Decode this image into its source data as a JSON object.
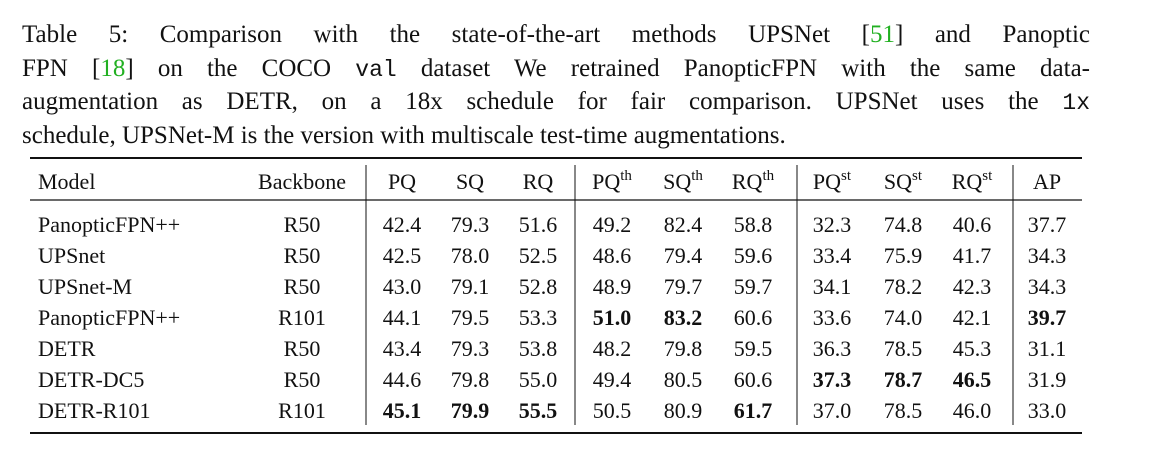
{
  "caption": {
    "lines": [
      [
        {
          "text": "Table 5: Comparison with the state-of-the-art methods UPSNet ["
        },
        {
          "text": "51",
          "style": "cite"
        },
        {
          "text": "] and Panoptic"
        }
      ],
      [
        {
          "text": "FPN ["
        },
        {
          "text": "18",
          "style": "cite"
        },
        {
          "text": "] on the COCO "
        },
        {
          "text": "val",
          "style": "code"
        },
        {
          "text": " dataset We retrained PanopticFPN with the same data-"
        }
      ],
      [
        {
          "text": "augmentation as DETR, on a 18x schedule for fair comparison. UPSNet uses the "
        },
        {
          "text": "1x",
          "style": "code"
        }
      ],
      [
        {
          "text": "schedule, UPSNet-M is the version with multiscale test-time augmentations."
        }
      ]
    ]
  },
  "table": {
    "header": [
      {
        "text": "Model"
      },
      {
        "text": "Backbone"
      },
      {
        "text": "PQ"
      },
      {
        "text": "SQ"
      },
      {
        "text": "RQ"
      },
      {
        "text": "PQ",
        "sup": "th"
      },
      {
        "text": "SQ",
        "sup": "th"
      },
      {
        "text": "RQ",
        "sup": "th"
      },
      {
        "text": "PQ",
        "sup": "st"
      },
      {
        "text": "SQ",
        "sup": "st"
      },
      {
        "text": "RQ",
        "sup": "st"
      },
      {
        "text": "AP"
      }
    ],
    "rows": [
      [
        "PanopticFPN++",
        "R50",
        "42.4",
        "79.3",
        "51.6",
        "49.2",
        "82.4",
        "58.8",
        "32.3",
        "74.8",
        "40.6",
        "37.7"
      ],
      [
        "UPSnet",
        "R50",
        "42.5",
        "78.0",
        "52.5",
        "48.6",
        "79.4",
        "59.6",
        "33.4",
        "75.9",
        "41.7",
        "34.3"
      ],
      [
        "UPSnet-M",
        "R50",
        "43.0",
        "79.1",
        "52.8",
        "48.9",
        "79.7",
        "59.7",
        "34.1",
        "78.2",
        "42.3",
        "34.3"
      ],
      [
        "PanopticFPN++",
        "R101",
        "44.1",
        "79.5",
        "53.3",
        "51.0",
        "83.2",
        "60.6",
        "33.6",
        "74.0",
        "42.1",
        "39.7"
      ],
      [
        "DETR",
        "R50",
        "43.4",
        "79.3",
        "53.8",
        "48.2",
        "79.8",
        "59.5",
        "36.3",
        "78.5",
        "45.3",
        "31.1"
      ],
      [
        "DETR-DC5",
        "R50",
        "44.6",
        "79.8",
        "55.0",
        "49.4",
        "80.5",
        "60.6",
        "37.3",
        "78.7",
        "46.5",
        "31.9"
      ],
      [
        "DETR-R101",
        "R101",
        "45.1",
        "79.9",
        "55.5",
        "50.5",
        "80.9",
        "61.7",
        "37.0",
        "78.5",
        "46.0",
        "33.0"
      ]
    ],
    "bold_cells": [
      [
        3,
        5
      ],
      [
        3,
        6
      ],
      [
        3,
        11
      ],
      [
        5,
        8
      ],
      [
        5,
        9
      ],
      [
        5,
        10
      ],
      [
        6,
        2
      ],
      [
        6,
        3
      ],
      [
        6,
        4
      ],
      [
        6,
        7
      ]
    ]
  }
}
